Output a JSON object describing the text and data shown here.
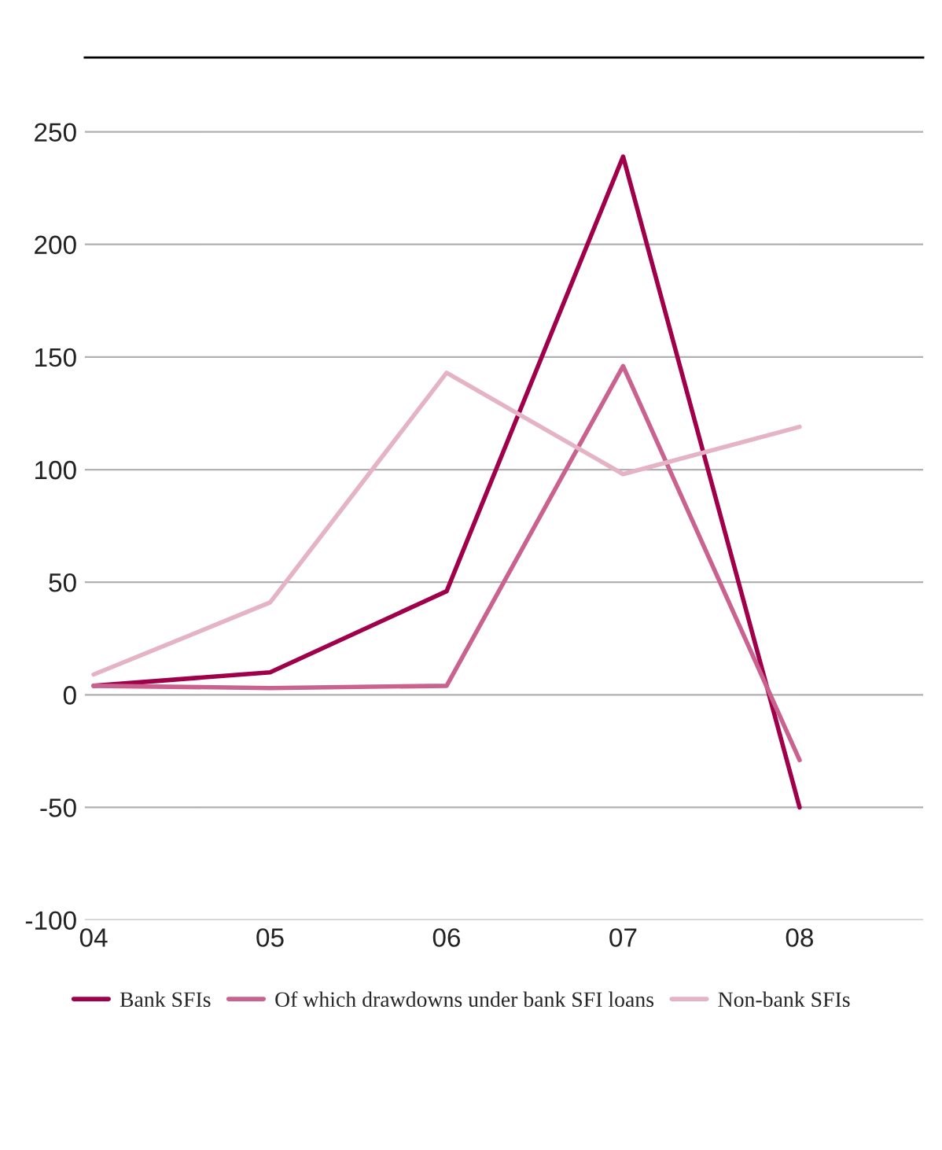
{
  "chart_data": {
    "type": "line",
    "categories": [
      "04",
      "05",
      "06",
      "07",
      "08"
    ],
    "series": [
      {
        "name": "Bank SFIs",
        "color": "#a0004a",
        "values": [
          4,
          10,
          46,
          239,
          -50
        ]
      },
      {
        "name": "Of which drawdowns under bank SFI loans",
        "color": "#c9628f",
        "values": [
          4,
          3,
          4,
          146,
          -29
        ]
      },
      {
        "name": "Non-bank SFIs",
        "color": "#e5b3c6",
        "values": [
          9,
          41,
          143,
          98,
          119
        ]
      }
    ],
    "ylim": [
      -100,
      283
    ],
    "yticks": [
      -100,
      -50,
      0,
      50,
      100,
      150,
      200,
      250
    ],
    "grid": "y",
    "legend": "bottom",
    "marker": "none",
    "line_style": "solid"
  }
}
